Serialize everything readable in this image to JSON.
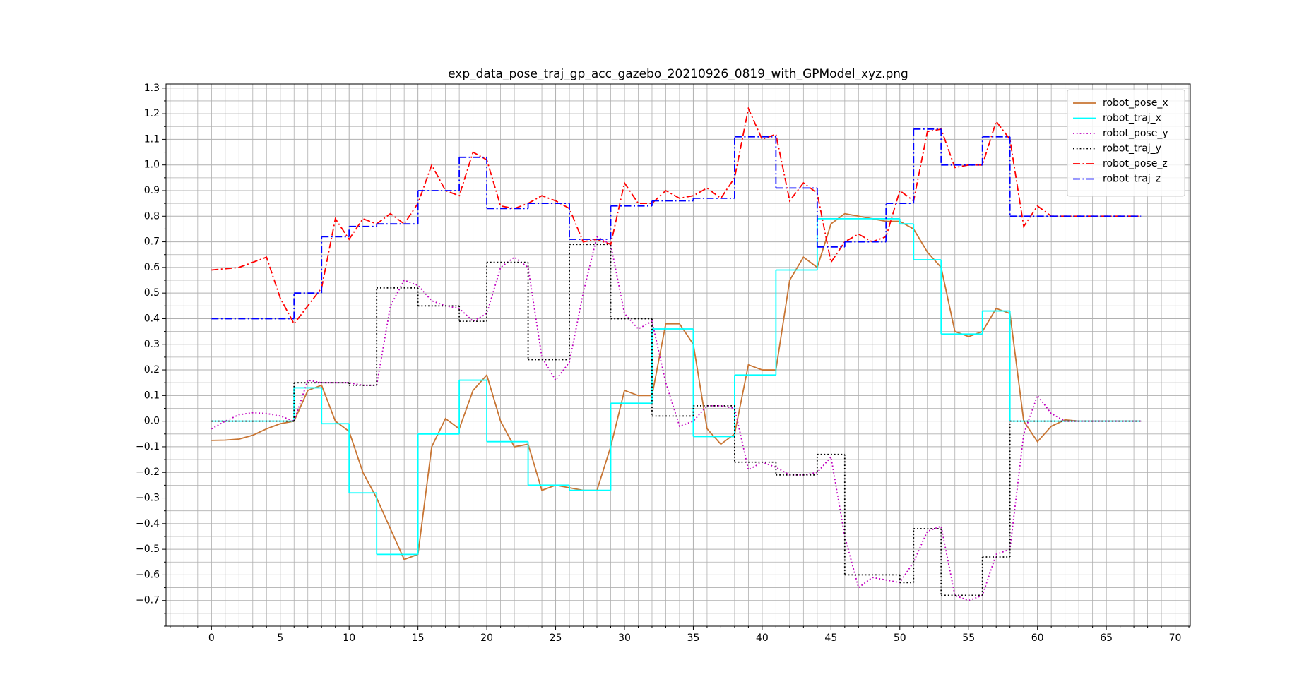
{
  "chart_data": {
    "type": "line",
    "title": "exp_data_pose_traj_gp_acc_gazebo_20210926_0819_with_GPModel_xyz.png",
    "xlim": [
      -3.3,
      71.1
    ],
    "ylim": [
      -0.8,
      1.316
    ],
    "xticks": [
      0,
      5,
      10,
      15,
      20,
      25,
      30,
      35,
      40,
      45,
      50,
      55,
      60,
      65,
      70
    ],
    "yticks": [
      1.3,
      1.2,
      1.1,
      {
        "value": 1.0,
        "label": "1.0"
      },
      0.9,
      0.8,
      0.7,
      0.6,
      0.5,
      0.4,
      0.3,
      0.2,
      0.1,
      {
        "value": 0.0,
        "label": "0.0"
      },
      {
        "value": -0.1,
        "label": "−0.1"
      },
      {
        "value": -0.2,
        "label": "−0.2"
      },
      {
        "value": -0.3,
        "label": "−0.3"
      },
      {
        "value": -0.4,
        "label": "−0.4"
      },
      {
        "value": -0.5,
        "label": "−0.5"
      },
      {
        "value": -0.6,
        "label": "−0.6"
      },
      {
        "value": -0.7,
        "label": "−0.7"
      }
    ],
    "minor_xticks": [
      -3,
      -2,
      -1,
      1,
      2,
      3,
      4,
      6,
      7,
      8,
      9,
      11,
      12,
      13,
      14,
      16,
      17,
      18,
      19,
      21,
      22,
      23,
      24,
      26,
      27,
      28,
      29,
      31,
      32,
      33,
      34,
      36,
      37,
      38,
      39,
      41,
      42,
      43,
      44,
      46,
      47,
      48,
      49,
      51,
      52,
      53,
      54,
      56,
      57,
      58,
      59,
      61,
      62,
      63,
      64,
      66,
      67,
      68,
      69,
      71
    ],
    "minor_yticks": [
      -0.8,
      -0.75,
      -0.65,
      -0.55,
      -0.45,
      -0.35,
      -0.25,
      -0.15,
      -0.05,
      0.05,
      0.15,
      0.25,
      0.35,
      0.45,
      0.55,
      0.65,
      0.75,
      0.85,
      0.95,
      1.05,
      1.15,
      1.25
    ],
    "grid": true,
    "legend": "upper right",
    "x": [
      0,
      1,
      2,
      3,
      4,
      5,
      6,
      7,
      8,
      9,
      10,
      11,
      12,
      13,
      14,
      15,
      16,
      17,
      18,
      19,
      20,
      21,
      22,
      23,
      24,
      25,
      26,
      27,
      28,
      29,
      30,
      31,
      32,
      33,
      34,
      35,
      36,
      37,
      38,
      39,
      40,
      41,
      42,
      43,
      44,
      45,
      46,
      47,
      48,
      49,
      50,
      51,
      52,
      53,
      54,
      55,
      56,
      57,
      58,
      59,
      60,
      61,
      62,
      63,
      64,
      65,
      66,
      67,
      67.5
    ],
    "series": [
      {
        "name": "robot_pose_x",
        "color": "#c87533",
        "linestyle": "solid",
        "values": [
          -0.075,
          -0.074,
          -0.07,
          -0.055,
          -0.03,
          -0.01,
          0.0,
          0.12,
          0.14,
          0.0,
          -0.04,
          -0.2,
          -0.3,
          -0.42,
          -0.54,
          -0.52,
          -0.1,
          0.01,
          -0.03,
          0.12,
          0.18,
          0.0,
          -0.1,
          -0.09,
          -0.27,
          -0.25,
          -0.26,
          -0.27,
          -0.27,
          -0.1,
          0.12,
          0.1,
          0.1,
          0.38,
          0.38,
          0.3,
          -0.03,
          -0.09,
          -0.05,
          0.22,
          0.2,
          0.2,
          0.55,
          0.64,
          0.6,
          0.77,
          0.81,
          0.8,
          0.79,
          0.78,
          0.78,
          0.75,
          0.66,
          0.6,
          0.35,
          0.33,
          0.35,
          0.44,
          0.42,
          0.0,
          -0.08,
          -0.02,
          0.005,
          0.0,
          0.0,
          0.0,
          0.0,
          0.0,
          0.0
        ]
      },
      {
        "name": "robot_traj_x",
        "color": "#00ffff",
        "linestyle": "solid",
        "drawstyle": "steps-post",
        "x": [
          0,
          6,
          8,
          10,
          12,
          15,
          18,
          20,
          23,
          26,
          29,
          32,
          35,
          38,
          41,
          44,
          50,
          51,
          53,
          56,
          58,
          67.5
        ],
        "values": [
          0.0,
          0.13,
          -0.01,
          -0.28,
          -0.52,
          -0.05,
          0.16,
          -0.08,
          -0.25,
          -0.27,
          0.07,
          0.36,
          -0.06,
          0.18,
          0.59,
          0.79,
          0.77,
          0.63,
          0.34,
          0.43,
          0.0,
          0.0
        ]
      },
      {
        "name": "robot_pose_y",
        "color": "#bf00bf",
        "linestyle": "dotted",
        "values": [
          -0.03,
          0.0,
          0.025,
          0.033,
          0.03,
          0.02,
          0.0,
          0.16,
          0.15,
          0.15,
          0.15,
          0.14,
          0.14,
          0.45,
          0.55,
          0.53,
          0.47,
          0.45,
          0.44,
          0.39,
          0.42,
          0.6,
          0.64,
          0.6,
          0.25,
          0.16,
          0.23,
          0.5,
          0.72,
          0.69,
          0.42,
          0.36,
          0.39,
          0.15,
          -0.02,
          0.0,
          0.06,
          0.06,
          0.05,
          -0.19,
          -0.16,
          -0.18,
          -0.21,
          -0.21,
          -0.2,
          -0.14,
          -0.45,
          -0.65,
          -0.61,
          -0.62,
          -0.63,
          -0.55,
          -0.43,
          -0.41,
          -0.68,
          -0.7,
          -0.68,
          -0.52,
          -0.5,
          -0.05,
          0.1,
          0.03,
          0.0,
          0.0,
          0.0,
          0.0,
          0.0,
          0.0,
          0.0
        ]
      },
      {
        "name": "robot_traj_y",
        "color": "#000000",
        "linestyle": "dotted",
        "drawstyle": "steps-post",
        "x": [
          0,
          6,
          10,
          12,
          15,
          18,
          20,
          23,
          26,
          29,
          32,
          35,
          38,
          41,
          44,
          46,
          50,
          51,
          53,
          56,
          58,
          67.5
        ],
        "values": [
          0.0,
          0.15,
          0.14,
          0.52,
          0.45,
          0.39,
          0.62,
          0.24,
          0.69,
          0.4,
          0.02,
          0.06,
          -0.16,
          -0.21,
          -0.13,
          -0.6,
          -0.63,
          -0.42,
          -0.68,
          -0.53,
          0.0,
          0.0
        ]
      },
      {
        "name": "robot_pose_z",
        "color": "#ff0000",
        "linestyle": "dashdot",
        "values": [
          0.59,
          0.595,
          0.6,
          0.62,
          0.64,
          0.48,
          0.38,
          0.45,
          0.52,
          0.79,
          0.71,
          0.79,
          0.77,
          0.81,
          0.77,
          0.85,
          1.0,
          0.9,
          0.88,
          1.05,
          1.02,
          0.84,
          0.83,
          0.85,
          0.88,
          0.86,
          0.83,
          0.7,
          0.71,
          0.69,
          0.93,
          0.85,
          0.85,
          0.9,
          0.87,
          0.88,
          0.91,
          0.87,
          0.95,
          1.22,
          1.1,
          1.12,
          0.86,
          0.93,
          0.89,
          0.62,
          0.7,
          0.73,
          0.7,
          0.72,
          0.9,
          0.86,
          1.13,
          1.14,
          0.99,
          1.0,
          1.0,
          1.17,
          1.1,
          0.76,
          0.84,
          0.8,
          0.8,
          0.8,
          0.8,
          0.8,
          0.8,
          0.8,
          0.8
        ]
      },
      {
        "name": "robot_traj_z",
        "color": "#0000ff",
        "linestyle": "dashdot",
        "drawstyle": "steps-post",
        "x": [
          0,
          6,
          8,
          10,
          12,
          15,
          18,
          20,
          23,
          26,
          29,
          32,
          35,
          38,
          41,
          44,
          46,
          49,
          51,
          53,
          56,
          58,
          67.5
        ],
        "values": [
          0.4,
          0.5,
          0.72,
          0.76,
          0.77,
          0.9,
          1.03,
          0.83,
          0.85,
          0.71,
          0.84,
          0.86,
          0.87,
          1.11,
          0.91,
          0.68,
          0.7,
          0.85,
          1.14,
          1.0,
          1.11,
          0.8,
          0.8
        ]
      }
    ]
  }
}
